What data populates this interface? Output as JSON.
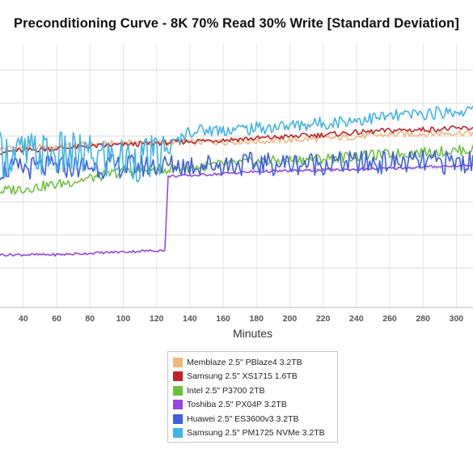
{
  "chart_data": {
    "type": "line",
    "title": "Preconditioning Curve - 8K 70% Read 30% Write [Standard Deviation]",
    "xlabel": "Minutes",
    "ylabel": "",
    "xlim": [
      26,
      310
    ],
    "ylim": [
      0,
      10
    ],
    "x_ticks": [
      40,
      60,
      80,
      100,
      120,
      140,
      160,
      180,
      200,
      220,
      240,
      260,
      280,
      300
    ],
    "y_gridlines": [
      1.5,
      2.75,
      4.0,
      5.25,
      6.5,
      7.75,
      9.0
    ],
    "grid": true,
    "legend_position": "bottom-center",
    "series": [
      {
        "name": "Memblaze 2.5\" PBlaze4 3.2TB",
        "color": "#f0b77d",
        "x": [
          26,
          60,
          100,
          140,
          180,
          220,
          260,
          310
        ],
        "y": [
          6.03,
          6.1,
          6.23,
          6.26,
          6.3,
          6.4,
          6.55,
          6.63
        ]
      },
      {
        "name": "Samsung 2.5\" XS1715 1.6TB",
        "color": "#c0232b",
        "x": [
          26,
          60,
          100,
          140,
          180,
          220,
          260,
          310
        ],
        "y": [
          5.9,
          6.03,
          6.17,
          6.3,
          6.41,
          6.55,
          6.71,
          6.8
        ]
      },
      {
        "name": "Intel 2.5\" P3700 2TB",
        "color": "#6ec13c",
        "x": [
          26,
          60,
          100,
          140,
          180,
          220,
          260,
          310
        ],
        "y": [
          4.41,
          4.66,
          5.15,
          5.31,
          5.53,
          5.65,
          5.81,
          5.98
        ]
      },
      {
        "name": "Toshiba 2.5\" PX04P 3.2TB",
        "color": "#9546e5",
        "x": [
          26,
          60,
          100,
          125,
          127,
          140,
          180,
          220,
          260,
          310
        ],
        "y": [
          2.0,
          2.0,
          2.11,
          2.17,
          4.98,
          5.0,
          5.15,
          5.2,
          5.27,
          5.4
        ]
      },
      {
        "name": "Huawei 2.5\" ES3600v3 3.2TB",
        "color": "#3f5ee0",
        "x": [
          26,
          60,
          100,
          140,
          180,
          220,
          260,
          310
        ],
        "y": [
          5.23,
          5.33,
          5.35,
          5.4,
          5.44,
          5.47,
          5.5,
          5.5
        ]
      },
      {
        "name": "Samsung 2.5\" PM1725 NVMe 3.2TB",
        "color": "#41b3e6",
        "x": [
          26,
          60,
          100,
          120,
          140,
          180,
          220,
          260,
          310
        ],
        "y": [
          5.8,
          5.8,
          5.63,
          5.63,
          6.7,
          6.79,
          6.99,
          7.24,
          7.48
        ]
      }
    ]
  }
}
